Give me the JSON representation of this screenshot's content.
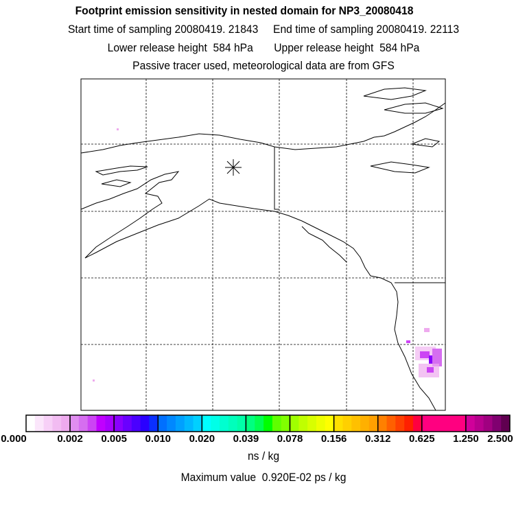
{
  "header": {
    "title": "Footprint emission sensitivity in nested domain for NP3_20080418",
    "start_time": "Start time of sampling 20080419. 21843",
    "end_time": "End time of sampling 20080419. 22113",
    "lower_height": "Lower release height  584 hPa",
    "upper_height": "Upper release height  584 hPa",
    "tracer_note": "Passive tracer used, meteorological data are from GFS"
  },
  "map": {
    "release_marker": "asterisk-icon",
    "plume_color": "#cc44f4"
  },
  "colorbar": {
    "labels": [
      "0.000",
      "0.002",
      "0.005",
      "0.010",
      "0.020",
      "0.039",
      "0.078",
      "0.156",
      "0.312",
      "0.625",
      "1.250",
      "2.500"
    ],
    "colors": [
      [
        "#ffffff",
        "#fbe6fb",
        "#f7d0f7",
        "#f2bcf2",
        "#eeaaee"
      ],
      [
        "#e08ef0",
        "#d66ef0",
        "#cc44f4",
        "#c000ff",
        "#a800ff"
      ],
      [
        "#8a00ff",
        "#6a00ff",
        "#4a00ff",
        "#2a00ff",
        "#0a30ff"
      ],
      [
        "#0070ff",
        "#0088ff",
        "#00a0ff",
        "#00b8ff",
        "#00d0ff"
      ],
      [
        "#00ffff",
        "#00ffe8",
        "#00ffd0",
        "#00ffbc",
        "#00ffa8"
      ],
      [
        "#00ff80",
        "#00ff50",
        "#00ff00",
        "#60ff00",
        "#80ff00"
      ],
      [
        "#a0ff00",
        "#c0ff00",
        "#d8ff00",
        "#eeff00",
        "#ffff00"
      ],
      [
        "#ffe000",
        "#ffd000",
        "#ffc000",
        "#ffb000",
        "#ffa000"
      ],
      [
        "#ff8000",
        "#ff6000",
        "#ff4000",
        "#ff2000",
        "#ff0040"
      ],
      [
        "#ff0080",
        "#ff0080",
        "#ff0080",
        "#ff0080",
        "#ff0080"
      ],
      [
        "#d0009a",
        "#b8008e",
        "#a00080",
        "#800070",
        "#600050"
      ]
    ],
    "units": "ns / kg",
    "max_value": "Maximum value  0.920E-02 ps / kg"
  }
}
